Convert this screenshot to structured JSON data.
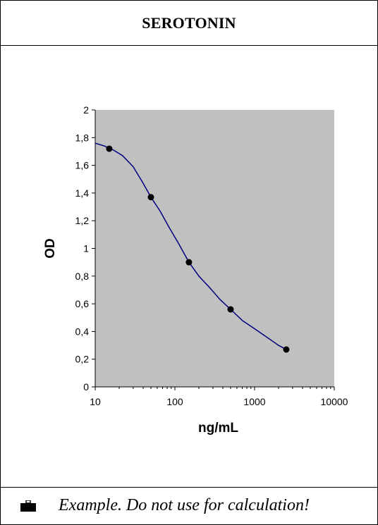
{
  "header": {
    "title": "SEROTONIN"
  },
  "footer": {
    "icon": "briefcase-icon",
    "note": "Example. Do not use for calculation!"
  },
  "colors": {
    "plot_background": "#c0c0c0",
    "curve": "#000080",
    "markers": "#000000",
    "border": "#000000"
  },
  "chart_data": {
    "type": "scatter",
    "xlabel": "ng/mL",
    "ylabel": "OD",
    "x_scale": "log",
    "xlim": [
      10,
      10000
    ],
    "ylim": [
      0,
      2
    ],
    "x_ticks": [
      10,
      100,
      1000,
      10000
    ],
    "x_tick_labels": [
      "10",
      "100",
      "1000",
      "10000"
    ],
    "y_ticks": [
      0,
      0.2,
      0.4,
      0.6,
      0.8,
      1,
      1.2,
      1.4,
      1.6,
      1.8,
      2
    ],
    "y_tick_labels": [
      "0",
      "0,2",
      "0,4",
      "0,6",
      "0,8",
      "1",
      "1,2",
      "1,4",
      "1,6",
      "1,8",
      "2"
    ],
    "grid": false,
    "legend": "none",
    "points": {
      "x": [
        15,
        50,
        150,
        500,
        2500
      ],
      "y": [
        1.72,
        1.37,
        0.9,
        0.56,
        0.27
      ]
    },
    "fitted_curve": {
      "x": [
        10,
        13,
        17,
        22,
        30,
        40,
        50,
        65,
        85,
        110,
        150,
        200,
        270,
        370,
        500,
        700,
        1000,
        1500,
        2000,
        2500
      ],
      "y": [
        1.76,
        1.74,
        1.71,
        1.67,
        1.59,
        1.47,
        1.37,
        1.27,
        1.15,
        1.04,
        0.9,
        0.8,
        0.72,
        0.63,
        0.56,
        0.48,
        0.42,
        0.35,
        0.3,
        0.27
      ]
    }
  }
}
